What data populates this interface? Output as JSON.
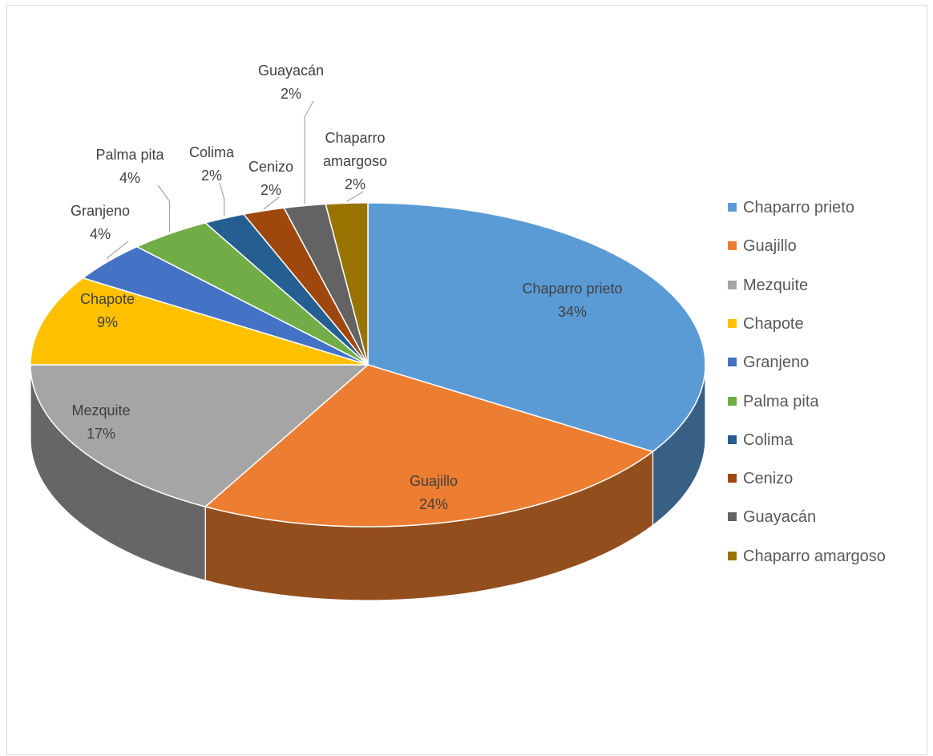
{
  "chart_data": {
    "type": "pie",
    "categories": [
      "Chaparro prieto",
      "Guajillo",
      "Mezquite",
      "Chapote",
      "Granjeno",
      "Palma pita",
      "Colima",
      "Cenizo",
      "Guayacán",
      "Chaparro amargoso"
    ],
    "values": [
      34,
      24,
      17,
      9,
      4,
      4,
      2,
      2,
      2,
      2
    ],
    "value_labels": [
      "34%",
      "24%",
      "17%",
      "9%",
      "4%",
      "4%",
      "2%",
      "2%",
      "2%",
      "2%"
    ],
    "colors": [
      "#5b9bd5",
      "#ed7d31",
      "#a5a5a5",
      "#ffc000",
      "#4472c4",
      "#70ad47",
      "#255e91",
      "#9e480e",
      "#636363",
      "#997300"
    ],
    "legend": "right"
  }
}
